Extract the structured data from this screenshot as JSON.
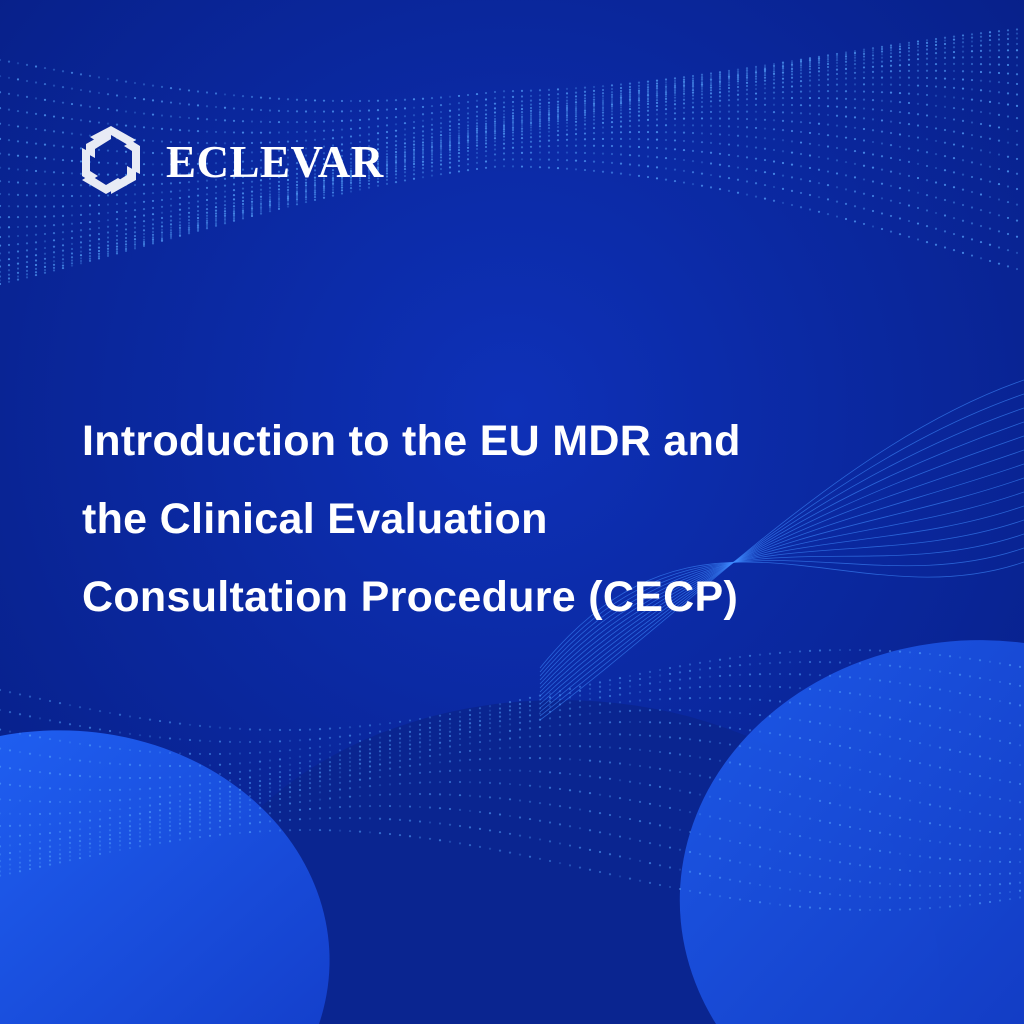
{
  "brand": {
    "name": "ECLEVAR",
    "icon": "hexagon-swirl-logo-icon"
  },
  "title_lines": [
    "Introduction to the EU MDR and",
    "the Clinical Evaluation",
    "Consultation Procedure (CECP)"
  ],
  "colors": {
    "background": "#0b2aa0",
    "accent_light": "#1d55e6",
    "text": "#ffffff",
    "dots": "#5aa8ff"
  }
}
